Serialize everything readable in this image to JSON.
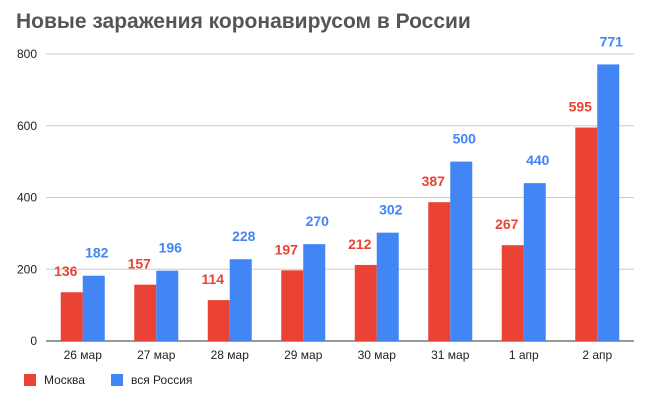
{
  "chart_data": {
    "type": "bar",
    "title": "Новые заражения коронавирусом в России",
    "categories": [
      "26 мар",
      "27 мар",
      "28 мар",
      "29 мар",
      "30 мар",
      "31 мар",
      "1 апр",
      "2 апр"
    ],
    "series": [
      {
        "name": "Москва",
        "color": "#ea4335",
        "values": [
          136,
          157,
          114,
          197,
          212,
          387,
          267,
          595
        ]
      },
      {
        "name": "вся Россия",
        "color": "#4285f4",
        "values": [
          182,
          196,
          228,
          270,
          302,
          500,
          440,
          771
        ]
      }
    ],
    "ylim": [
      0,
      800
    ],
    "yticks": [
      0,
      200,
      400,
      600,
      800
    ],
    "grid": true,
    "legend": "bottom-left",
    "data_labels": true
  }
}
